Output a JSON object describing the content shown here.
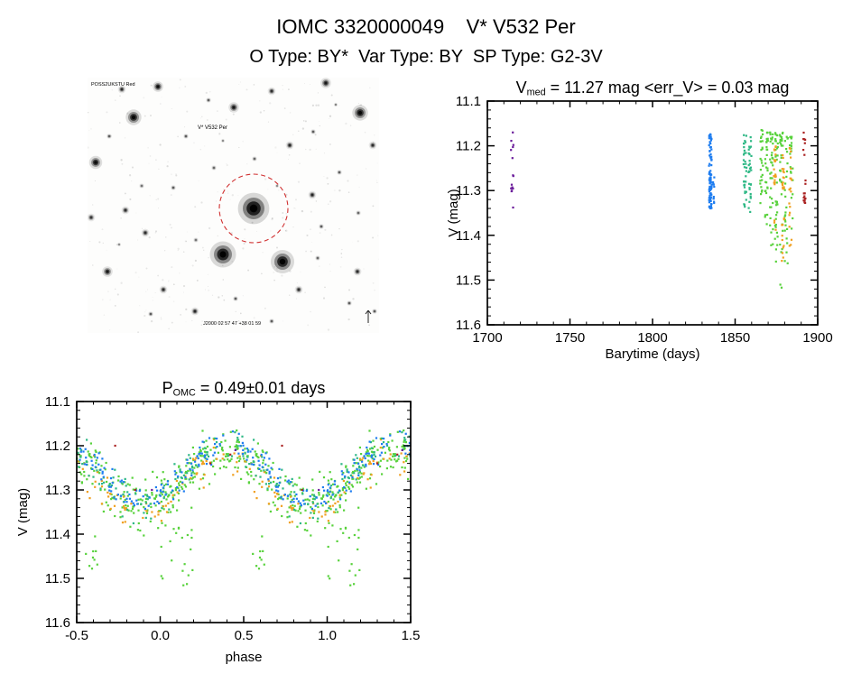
{
  "page": {
    "title": "IOMC 3320000049    V* V532 Per",
    "subtitle": "O Type: BY*  Var Type: BY  SP Type: G2-3V"
  },
  "finder": {
    "annotations": {
      "survey_label": "POSS2UKSTU Red",
      "target_label": "V* V532 Per",
      "coords_label": "J2000  02 57 47  +38 01 59"
    },
    "aperture_color": "#d03030",
    "stars": [
      [
        184,
        145,
        12,
        1
      ],
      [
        150,
        196,
        10,
        0.95
      ],
      [
        216,
        204,
        9,
        0.92
      ],
      [
        51,
        44,
        6,
        0.85
      ],
      [
        78,
        10,
        4,
        0.8
      ],
      [
        38,
        13,
        3,
        0.6
      ],
      [
        162,
        33,
        4,
        0.7
      ],
      [
        204,
        15,
        3,
        0.6
      ],
      [
        264,
        6,
        4,
        0.7
      ],
      [
        302,
        39,
        6,
        0.85
      ],
      [
        316,
        75,
        3,
        0.6
      ],
      [
        9,
        94,
        5,
        0.8
      ],
      [
        4,
        155,
        3,
        0.55
      ],
      [
        42,
        147,
        3,
        0.6
      ],
      [
        64,
        172,
        3,
        0.6
      ],
      [
        22,
        215,
        4,
        0.7
      ],
      [
        84,
        235,
        3,
        0.6
      ],
      [
        119,
        259,
        3,
        0.65
      ],
      [
        164,
        245,
        2,
        0.5
      ],
      [
        234,
        235,
        3,
        0.6
      ],
      [
        204,
        270,
        2,
        0.5
      ],
      [
        299,
        215,
        3,
        0.6
      ],
      [
        318,
        259,
        2,
        0.5
      ],
      [
        259,
        165,
        2,
        0.5
      ],
      [
        249,
        130,
        3,
        0.65
      ],
      [
        279,
        105,
        2,
        0.5
      ],
      [
        224,
        75,
        3,
        0.65
      ],
      [
        134,
        25,
        2,
        0.5
      ],
      [
        109,
        65,
        2,
        0.5
      ],
      [
        24,
        65,
        2,
        0.5
      ],
      [
        95,
        122,
        2,
        0.5
      ],
      [
        140,
        100,
        2,
        0.45
      ],
      [
        250,
        60,
        2,
        0.5
      ],
      [
        300,
        150,
        2,
        0.45
      ],
      [
        60,
        120,
        2,
        0.4
      ],
      [
        185,
        90,
        2,
        0.45
      ],
      [
        290,
        250,
        2,
        0.5
      ],
      [
        120,
        180,
        2,
        0.4
      ],
      [
        255,
        200,
        2,
        0.45
      ],
      [
        70,
        262,
        2,
        0.5
      ],
      [
        150,
        70,
        1.5,
        0.4
      ],
      [
        210,
        120,
        1.5,
        0.4
      ],
      [
        35,
        185,
        1.5,
        0.4
      ],
      [
        275,
        30,
        1.5,
        0.45
      ]
    ]
  },
  "chart_data": [
    {
      "type": "scatter",
      "name": "light-curve",
      "title": "V_med = 11.27 mag <err_V> = 0.03 mag",
      "title_parts": {
        "prefix": "V",
        "sub": "med",
        "rest": " = 11.27 mag <err_V> = 0.03 mag"
      },
      "xlabel": "Barytime (days)",
      "ylabel": "V (mag)",
      "xlim": [
        1700,
        1900
      ],
      "ylim": [
        11.6,
        11.1
      ],
      "xticks": [
        1700,
        1750,
        1800,
        1850,
        1900
      ],
      "xtick_labels": [
        "1700",
        "1750",
        "1800",
        "1850",
        "1900"
      ],
      "yticks": [
        11.1,
        11.2,
        11.3,
        11.4,
        11.5,
        11.6
      ],
      "ytick_labels": [
        "11.1",
        "11.2",
        "11.3",
        "11.4",
        "11.5",
        "11.6"
      ],
      "x_minor": 10,
      "y_minor": 0.02,
      "median_v_mag": 11.27,
      "mean_v_err": 0.03,
      "grid": false,
      "seed": 7,
      "series": [
        {
          "name": "epoch-1866-1884-green",
          "color": "#58d23c",
          "strips": [
            {
              "x": 1866,
              "n": 26,
              "mag": [
                11.16,
                11.34
              ],
              "dx": 0.9,
              "pow": 1.2
            },
            {
              "x": 1869,
              "n": 30,
              "mag": [
                11.17,
                11.38
              ],
              "dx": 0.9,
              "pow": 1.3
            },
            {
              "x": 1872,
              "n": 34,
              "mag": [
                11.17,
                11.44
              ],
              "dx": 0.9,
              "pow": 1.7
            },
            {
              "x": 1875,
              "n": 34,
              "mag": [
                11.17,
                11.46
              ],
              "dx": 0.9,
              "pow": 1.8
            },
            {
              "x": 1878,
              "n": 30,
              "mag": [
                11.17,
                11.52
              ],
              "dx": 0.9,
              "pow": 2.0
            },
            {
              "x": 1881,
              "n": 26,
              "mag": [
                11.18,
                11.47
              ],
              "dx": 0.9,
              "pow": 1.9
            },
            {
              "x": 1884,
              "n": 22,
              "mag": [
                11.18,
                11.5
              ],
              "dx": 0.9,
              "pow": 2.0
            }
          ]
        },
        {
          "name": "epoch-1874-1884-orange",
          "color": "#f0a020",
          "strips": [
            {
              "x": 1874,
              "n": 20,
              "mag": [
                11.2,
                11.4
              ],
              "dx": 0.7,
              "pow": 1.3
            },
            {
              "x": 1879,
              "n": 26,
              "mag": [
                11.22,
                11.46
              ],
              "dx": 0.7,
              "pow": 1.4
            },
            {
              "x": 1883.5,
              "n": 20,
              "mag": [
                11.2,
                11.43
              ],
              "dx": 0.7,
              "pow": 1.3
            }
          ]
        },
        {
          "name": "epoch-1856-1859-teal",
          "color": "#2eb885",
          "strips": [
            {
              "x": 1856,
              "n": 32,
              "mag": [
                11.17,
                11.34
              ],
              "dx": 0.9,
              "pow": 1.1
            },
            {
              "x": 1859,
              "n": 30,
              "mag": [
                11.18,
                11.35
              ],
              "dx": 0.9,
              "pow": 1.1
            }
          ]
        },
        {
          "name": "epoch-1835-blue",
          "color": "#1e7df0",
          "strips": [
            {
              "x": 1835,
              "n": 30,
              "mag": [
                11.17,
                11.26
              ],
              "dx": 0.8,
              "pow": 1
            },
            {
              "x": 1835,
              "n": 60,
              "mag": [
                11.26,
                11.34
              ],
              "dx": 0.8,
              "pow": 1
            },
            {
              "x": 1837,
              "n": 10,
              "mag": [
                11.27,
                11.33
              ],
              "dx": 0.5,
              "pow": 1
            }
          ]
        },
        {
          "name": "epoch-1715-purple",
          "color": "#6a1b9a",
          "strips": [
            {
              "x": 1715,
              "n": 6,
              "mag": [
                11.17,
                11.23
              ],
              "dx": 0.8,
              "pow": 1
            },
            {
              "x": 1715,
              "n": 9,
              "mag": [
                11.26,
                11.34
              ],
              "dx": 0.8,
              "pow": 1
            }
          ]
        },
        {
          "name": "epoch-1892-red",
          "color": "#aa2222",
          "strips": [
            {
              "x": 1892,
              "n": 7,
              "mag": [
                11.17,
                11.23
              ],
              "dx": 0.7,
              "pow": 1
            },
            {
              "x": 1892,
              "n": 12,
              "mag": [
                11.27,
                11.33
              ],
              "dx": 0.7,
              "pow": 1
            }
          ]
        }
      ]
    },
    {
      "type": "scatter",
      "name": "phase-folded-light-curve",
      "title": "P_OMC = 0.49±0.01 days",
      "title_parts": {
        "prefix": "P",
        "sub": "OMC",
        "rest": " = 0.49±0.01 days"
      },
      "xlabel": "phase",
      "ylabel": "V (mag)",
      "xlim": [
        -0.5,
        1.5
      ],
      "ylim": [
        11.6,
        11.1
      ],
      "xticks": [
        -0.5,
        0,
        0.5,
        1,
        1.5
      ],
      "xtick_labels": [
        "-0.5",
        "0.0",
        "0.5",
        "1.0",
        "1.5"
      ],
      "yticks": [
        11.1,
        11.2,
        11.3,
        11.4,
        11.5,
        11.6
      ],
      "ytick_labels": [
        "11.1",
        "11.2",
        "11.3",
        "11.4",
        "11.5",
        "11.6"
      ],
      "x_minor": 0.1,
      "y_minor": 0.02,
      "period_days": 0.49,
      "period_err_days": 0.01,
      "folded": true,
      "grid": false,
      "seed": 11,
      "model": {
        "mean_mag": 11.27,
        "amplitude": 0.065,
        "phase_of_max": 0.4
      },
      "series": [
        {
          "name": "green",
          "color": "#58d23c",
          "n": 265,
          "sd": 0.03,
          "offset": 0.003,
          "tails": [
            {
              "p": [
                0.0,
                0.2
              ],
              "mag": [
                11.38,
                11.52
              ],
              "n": 20
            },
            {
              "p": [
                -0.45,
                -0.3
              ],
              "mag": [
                11.35,
                11.5
              ],
              "n": 9
            }
          ]
        },
        {
          "name": "orange",
          "color": "#f0a020",
          "n": 75,
          "sd": 0.02,
          "offset": 0.018
        },
        {
          "name": "teal",
          "color": "#2eb885",
          "n": 85,
          "sd": 0.022,
          "offset": -0.005
        },
        {
          "name": "blue",
          "color": "#1e7df0",
          "n": 115,
          "sd": 0.018,
          "offset": -0.012
        },
        {
          "name": "purple",
          "color": "#6a1b9a",
          "points": [
            [
              -0.05,
              11.3
            ],
            [
              0.45,
              11.21
            ]
          ]
        },
        {
          "name": "red",
          "color": "#aa2222",
          "points": [
            [
              -0.27,
              11.2
            ],
            [
              0.3,
              11.24
            ],
            [
              -0.15,
              11.3
            ],
            [
              0.42,
              11.22
            ]
          ]
        }
      ]
    }
  ]
}
